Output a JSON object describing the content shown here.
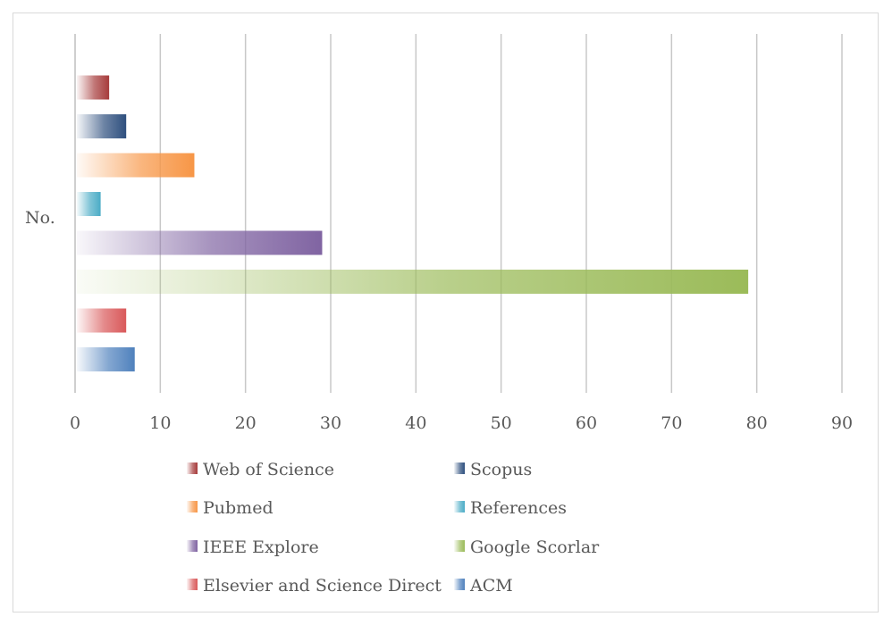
{
  "chart_data": {
    "type": "bar",
    "orientation": "horizontal",
    "categories": [
      "No."
    ],
    "xlim": [
      0,
      90
    ],
    "xticks": [
      0,
      10,
      20,
      30,
      40,
      50,
      60,
      70,
      80,
      90
    ],
    "grid": true,
    "legend_position": "bottom",
    "series": [
      {
        "name": "Web of Science",
        "values": [
          4
        ],
        "color": "#a63b3b"
      },
      {
        "name": "Scopus",
        "values": [
          6
        ],
        "color": "#2e4f7e"
      },
      {
        "name": "Pubmed",
        "values": [
          14
        ],
        "color": "#f79646"
      },
      {
        "name": "References",
        "values": [
          3
        ],
        "color": "#4bacc6"
      },
      {
        "name": "IEEE Explore",
        "values": [
          29
        ],
        "color": "#8064a2"
      },
      {
        "name": "Google Scorlar",
        "values": [
          79
        ],
        "color": "#9bbb59"
      },
      {
        "name": "Elsevier and Science Direct",
        "values": [
          6
        ],
        "color": "#d9595a"
      },
      {
        "name": "ACM",
        "values": [
          7
        ],
        "color": "#4f81bd"
      }
    ]
  }
}
